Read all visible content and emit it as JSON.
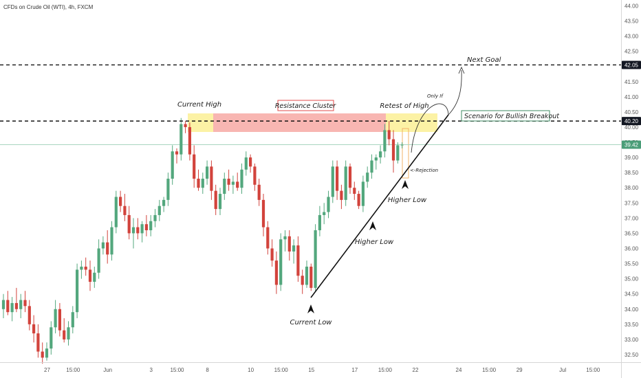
{
  "chart_data": {
    "type": "candlestick",
    "title": "CFDs on Crude Oil (WTI), 4h, FXCM",
    "ylim": [
      32.25,
      44.1
    ],
    "y_ticks": [
      "44.00",
      "43.50",
      "43.00",
      "42.50",
      "42.00",
      "41.50",
      "41.00",
      "40.50",
      "40.00",
      "39.50",
      "39.00",
      "38.50",
      "38.00",
      "37.50",
      "37.00",
      "36.50",
      "36.00",
      "35.50",
      "35.00",
      "34.50",
      "34.00",
      "33.50",
      "33.00",
      "32.50"
    ],
    "x_ticks": [
      {
        "label": "27",
        "i": 5
      },
      {
        "label": "15:00",
        "i": 11
      },
      {
        "label": "Jun",
        "i": 19
      },
      {
        "label": "3",
        "i": 29
      },
      {
        "label": "15:00",
        "i": 35
      },
      {
        "label": "8",
        "i": 42
      },
      {
        "label": "10",
        "i": 52
      },
      {
        "label": "15:00",
        "i": 59
      },
      {
        "label": "15",
        "i": 66
      },
      {
        "label": "17",
        "i": 76
      },
      {
        "label": "15:00",
        "i": 83
      },
      {
        "label": "22",
        "i": 90
      },
      {
        "label": "24",
        "i": 100
      },
      {
        "label": "15:00",
        "i": 107
      },
      {
        "label": "29",
        "i": 114
      },
      {
        "label": "Jul",
        "i": 124
      },
      {
        "label": "15:00",
        "i": 131
      }
    ],
    "price_labels": [
      {
        "value": 42.05,
        "text": "42.05",
        "color": "#131722"
      },
      {
        "value": 40.2,
        "text": "40.20",
        "color": "#131722"
      },
      {
        "value": 39.42,
        "text": "39.42",
        "color": "#4a9d78"
      }
    ],
    "levels": [
      42.05,
      40.2
    ],
    "current_price": 39.42,
    "up_color": "#53a77d",
    "down_color": "#d2433c",
    "candles": [
      {
        "o": 34.0,
        "h": 34.5,
        "l": 33.7,
        "c": 34.3
      },
      {
        "o": 34.3,
        "h": 34.6,
        "l": 33.8,
        "c": 33.9
      },
      {
        "o": 33.9,
        "h": 34.4,
        "l": 33.6,
        "c": 34.2
      },
      {
        "o": 34.2,
        "h": 34.7,
        "l": 33.9,
        "c": 34.0
      },
      {
        "o": 34.0,
        "h": 34.5,
        "l": 33.7,
        "c": 34.3
      },
      {
        "o": 34.3,
        "h": 34.6,
        "l": 33.9,
        "c": 34.1
      },
      {
        "o": 34.1,
        "h": 34.3,
        "l": 33.3,
        "c": 33.5
      },
      {
        "o": 33.5,
        "h": 33.8,
        "l": 32.9,
        "c": 33.2
      },
      {
        "o": 33.2,
        "h": 33.5,
        "l": 32.4,
        "c": 32.6
      },
      {
        "o": 32.6,
        "h": 32.9,
        "l": 32.2,
        "c": 32.4
      },
      {
        "o": 32.4,
        "h": 32.9,
        "l": 32.3,
        "c": 32.7
      },
      {
        "o": 32.7,
        "h": 33.6,
        "l": 32.5,
        "c": 33.4
      },
      {
        "o": 33.4,
        "h": 34.3,
        "l": 33.2,
        "c": 34.0
      },
      {
        "o": 34.0,
        "h": 34.2,
        "l": 33.1,
        "c": 33.3
      },
      {
        "o": 33.3,
        "h": 33.7,
        "l": 32.9,
        "c": 33.0
      },
      {
        "o": 33.0,
        "h": 33.6,
        "l": 32.8,
        "c": 33.4
      },
      {
        "o": 33.4,
        "h": 34.1,
        "l": 33.2,
        "c": 33.9
      },
      {
        "o": 33.9,
        "h": 35.5,
        "l": 33.7,
        "c": 35.3
      },
      {
        "o": 35.3,
        "h": 35.6,
        "l": 35.0,
        "c": 35.4
      },
      {
        "o": 35.4,
        "h": 35.7,
        "l": 35.1,
        "c": 35.3
      },
      {
        "o": 35.3,
        "h": 35.6,
        "l": 34.6,
        "c": 34.9
      },
      {
        "o": 34.9,
        "h": 35.4,
        "l": 34.7,
        "c": 35.2
      },
      {
        "o": 35.2,
        "h": 36.3,
        "l": 35.0,
        "c": 36.0
      },
      {
        "o": 36.0,
        "h": 36.4,
        "l": 35.8,
        "c": 36.2
      },
      {
        "o": 36.2,
        "h": 36.6,
        "l": 35.5,
        "c": 35.8
      },
      {
        "o": 35.8,
        "h": 36.9,
        "l": 35.6,
        "c": 36.7
      },
      {
        "o": 36.7,
        "h": 37.9,
        "l": 36.5,
        "c": 37.7
      },
      {
        "o": 37.7,
        "h": 37.9,
        "l": 37.2,
        "c": 37.4
      },
      {
        "o": 37.4,
        "h": 37.8,
        "l": 36.9,
        "c": 37.1
      },
      {
        "o": 37.1,
        "h": 37.4,
        "l": 36.3,
        "c": 36.5
      },
      {
        "o": 36.5,
        "h": 37.0,
        "l": 36.0,
        "c": 36.7
      },
      {
        "o": 36.7,
        "h": 37.0,
        "l": 36.3,
        "c": 36.5
      },
      {
        "o": 36.5,
        "h": 36.9,
        "l": 36.2,
        "c": 36.8
      },
      {
        "o": 36.8,
        "h": 37.1,
        "l": 36.4,
        "c": 36.6
      },
      {
        "o": 36.6,
        "h": 37.1,
        "l": 36.4,
        "c": 36.9
      },
      {
        "o": 36.9,
        "h": 37.3,
        "l": 36.7,
        "c": 37.1
      },
      {
        "o": 37.1,
        "h": 37.6,
        "l": 36.9,
        "c": 37.4
      },
      {
        "o": 37.4,
        "h": 37.7,
        "l": 37.2,
        "c": 37.6
      },
      {
        "o": 37.6,
        "h": 38.5,
        "l": 37.4,
        "c": 38.3
      },
      {
        "o": 38.3,
        "h": 39.4,
        "l": 38.1,
        "c": 39.2
      },
      {
        "o": 39.2,
        "h": 39.3,
        "l": 38.8,
        "c": 39.1
      },
      {
        "o": 39.1,
        "h": 40.3,
        "l": 38.9,
        "c": 40.1
      },
      {
        "o": 40.1,
        "h": 40.2,
        "l": 39.8,
        "c": 40.0
      },
      {
        "o": 40.0,
        "h": 40.15,
        "l": 38.9,
        "c": 39.1
      },
      {
        "o": 39.1,
        "h": 39.4,
        "l": 38.0,
        "c": 38.3
      },
      {
        "o": 38.3,
        "h": 38.6,
        "l": 37.9,
        "c": 38.0
      },
      {
        "o": 38.0,
        "h": 38.5,
        "l": 37.8,
        "c": 38.3
      },
      {
        "o": 38.3,
        "h": 38.9,
        "l": 38.1,
        "c": 38.7
      },
      {
        "o": 38.7,
        "h": 38.9,
        "l": 37.6,
        "c": 37.9
      },
      {
        "o": 37.9,
        "h": 38.1,
        "l": 37.1,
        "c": 37.3
      },
      {
        "o": 37.3,
        "h": 38.0,
        "l": 37.1,
        "c": 37.8
      },
      {
        "o": 37.8,
        "h": 38.5,
        "l": 37.6,
        "c": 38.3
      },
      {
        "o": 38.3,
        "h": 38.6,
        "l": 37.9,
        "c": 38.1
      },
      {
        "o": 38.1,
        "h": 38.4,
        "l": 37.8,
        "c": 38.2
      },
      {
        "o": 38.2,
        "h": 38.5,
        "l": 37.9,
        "c": 38.0
      },
      {
        "o": 38.0,
        "h": 38.8,
        "l": 37.8,
        "c": 38.6
      },
      {
        "o": 38.6,
        "h": 39.2,
        "l": 38.4,
        "c": 39.0
      },
      {
        "o": 39.0,
        "h": 39.1,
        "l": 38.5,
        "c": 38.7
      },
      {
        "o": 38.7,
        "h": 38.8,
        "l": 37.9,
        "c": 38.1
      },
      {
        "o": 38.1,
        "h": 38.3,
        "l": 37.4,
        "c": 37.6
      },
      {
        "o": 37.6,
        "h": 37.8,
        "l": 36.4,
        "c": 36.7
      },
      {
        "o": 36.7,
        "h": 36.9,
        "l": 35.8,
        "c": 36.0
      },
      {
        "o": 36.0,
        "h": 36.3,
        "l": 35.4,
        "c": 35.6
      },
      {
        "o": 35.6,
        "h": 35.9,
        "l": 34.5,
        "c": 34.8
      },
      {
        "o": 34.8,
        "h": 36.5,
        "l": 34.6,
        "c": 36.3
      },
      {
        "o": 36.3,
        "h": 36.6,
        "l": 35.9,
        "c": 36.4
      },
      {
        "o": 36.4,
        "h": 36.6,
        "l": 35.6,
        "c": 35.9
      },
      {
        "o": 35.9,
        "h": 36.3,
        "l": 35.5,
        "c": 36.1
      },
      {
        "o": 36.1,
        "h": 36.4,
        "l": 34.9,
        "c": 35.1
      },
      {
        "o": 35.1,
        "h": 35.3,
        "l": 34.5,
        "c": 34.8
      },
      {
        "o": 34.8,
        "h": 35.6,
        "l": 34.7,
        "c": 35.4
      },
      {
        "o": 35.4,
        "h": 35.5,
        "l": 34.6,
        "c": 34.7
      },
      {
        "o": 34.7,
        "h": 36.8,
        "l": 34.6,
        "c": 36.6
      },
      {
        "o": 36.6,
        "h": 37.4,
        "l": 36.4,
        "c": 37.1
      },
      {
        "o": 37.1,
        "h": 37.5,
        "l": 36.8,
        "c": 37.2
      },
      {
        "o": 37.2,
        "h": 37.9,
        "l": 37.0,
        "c": 37.7
      },
      {
        "o": 37.7,
        "h": 38.9,
        "l": 37.5,
        "c": 38.7
      },
      {
        "o": 38.7,
        "h": 38.9,
        "l": 37.6,
        "c": 37.9
      },
      {
        "o": 37.9,
        "h": 38.1,
        "l": 37.3,
        "c": 37.6
      },
      {
        "o": 37.6,
        "h": 38.9,
        "l": 37.4,
        "c": 38.7
      },
      {
        "o": 38.7,
        "h": 38.8,
        "l": 37.8,
        "c": 38.0
      },
      {
        "o": 38.0,
        "h": 38.2,
        "l": 37.6,
        "c": 37.8
      },
      {
        "o": 37.8,
        "h": 37.9,
        "l": 37.3,
        "c": 37.4
      },
      {
        "o": 37.4,
        "h": 38.4,
        "l": 37.2,
        "c": 38.2
      },
      {
        "o": 38.2,
        "h": 38.7,
        "l": 38.0,
        "c": 38.5
      },
      {
        "o": 38.5,
        "h": 39.1,
        "l": 38.3,
        "c": 38.9
      },
      {
        "o": 38.9,
        "h": 39.1,
        "l": 38.6,
        "c": 39.0
      },
      {
        "o": 39.0,
        "h": 39.4,
        "l": 38.8,
        "c": 39.2
      },
      {
        "o": 39.2,
        "h": 40.1,
        "l": 39.0,
        "c": 39.9
      },
      {
        "o": 39.9,
        "h": 40.2,
        "l": 39.4,
        "c": 39.6
      },
      {
        "o": 39.6,
        "h": 39.9,
        "l": 38.5,
        "c": 38.9
      },
      {
        "o": 38.9,
        "h": 39.5,
        "l": 38.8,
        "c": 39.4
      },
      {
        "o": 39.4,
        "h": 39.5,
        "l": 39.3,
        "c": 39.42
      }
    ]
  },
  "annotations": {
    "current_high": "Current High",
    "resistance_cluster": "Resistance Cluster",
    "retest_of_high": "Retest of High",
    "only_if": "Only If",
    "next_goal": "Next Goal",
    "scenario": "Scenario for Bullish Breakout",
    "rejection": "<-Rejection",
    "higher_low_1": "Higher Low",
    "higher_low_2": "Higher Low",
    "current_low": "Current Low"
  }
}
